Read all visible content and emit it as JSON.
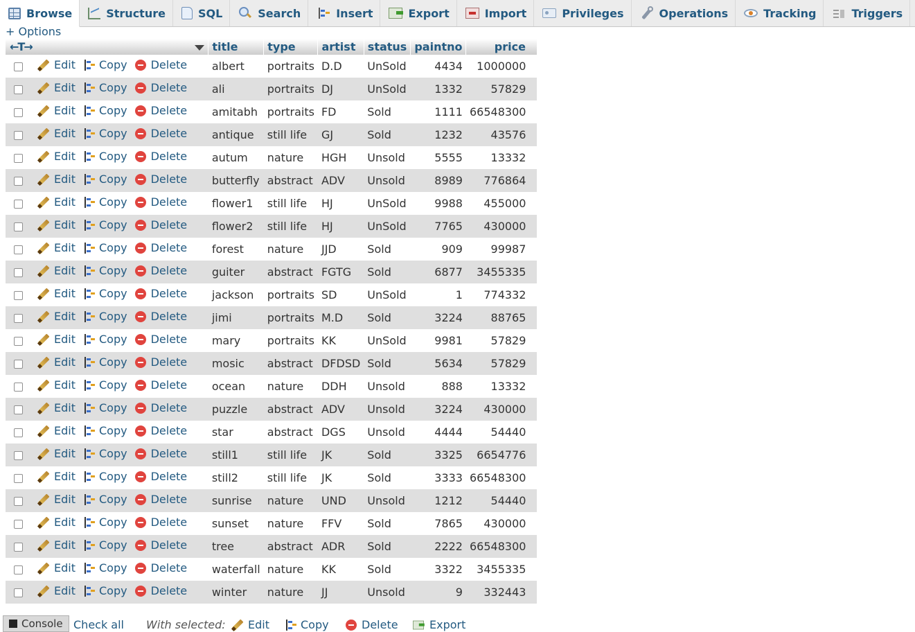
{
  "tabs": [
    {
      "label": "Browse",
      "icon": "browse-icon",
      "active": true
    },
    {
      "label": "Structure",
      "icon": "structure-icon"
    },
    {
      "label": "SQL",
      "icon": "sql-icon"
    },
    {
      "label": "Search",
      "icon": "search-icon"
    },
    {
      "label": "Insert",
      "icon": "insert-icon"
    },
    {
      "label": "Export",
      "icon": "export-icon"
    },
    {
      "label": "Import",
      "icon": "import-icon"
    },
    {
      "label": "Privileges",
      "icon": "privileges-icon"
    },
    {
      "label": "Operations",
      "icon": "operations-icon"
    },
    {
      "label": "Tracking",
      "icon": "tracking-icon"
    },
    {
      "label": "Triggers",
      "icon": "triggers-icon"
    }
  ],
  "options_label": "+ Options",
  "header": {
    "arrows": "←T→",
    "columns": [
      "title",
      "type",
      "artist",
      "status",
      "paintno",
      "price"
    ]
  },
  "actions": {
    "edit": "Edit",
    "copy": "Copy",
    "delete": "Delete"
  },
  "rows": [
    [
      "albert",
      "portraits",
      "D.D",
      "UnSold",
      "4434",
      "1000000"
    ],
    [
      "ali",
      "portraits",
      "DJ",
      "UnSold",
      "1332",
      "57829"
    ],
    [
      "amitabh",
      "portraits",
      "FD",
      "Sold",
      "1111",
      "66548300"
    ],
    [
      "antique",
      "still life",
      "GJ",
      "Sold",
      "1232",
      "43576"
    ],
    [
      "autum",
      "nature",
      "HGH",
      "Unsold",
      "5555",
      "13332"
    ],
    [
      "butterfly",
      "abstract",
      "ADV",
      "Unsold",
      "8989",
      "776864"
    ],
    [
      "flower1",
      "still life",
      "HJ",
      "UnSold",
      "9988",
      "455000"
    ],
    [
      "flower2",
      "still life",
      "HJ",
      "UnSold",
      "7765",
      "430000"
    ],
    [
      "forest",
      "nature",
      "JJD",
      "Sold",
      "909",
      "99987"
    ],
    [
      "guiter",
      "abstract",
      "FGTG",
      "Sold",
      "6877",
      "3455335"
    ],
    [
      "jackson",
      "portraits",
      "SD",
      "UnSold",
      "1",
      "774332"
    ],
    [
      "jimi",
      "portraits",
      "M.D",
      "Sold",
      "3224",
      "88765"
    ],
    [
      "mary",
      "portraits",
      "KK",
      "UnSold",
      "9981",
      "57829"
    ],
    [
      "mosic",
      "abstract",
      "DFDSD",
      "Sold",
      "5634",
      "57829"
    ],
    [
      "ocean",
      "nature",
      "DDH",
      "Unsold",
      "888",
      "13332"
    ],
    [
      "puzzle",
      "abstract",
      "ADV",
      "Unsold",
      "3224",
      "430000"
    ],
    [
      "star",
      "abstract",
      "DGS",
      "Unsold",
      "4444",
      "54440"
    ],
    [
      "still1",
      "still life",
      "JK",
      "Sold",
      "3325",
      "6654776"
    ],
    [
      "still2",
      "still life",
      "JK",
      "Sold",
      "3333",
      "66548300"
    ],
    [
      "sunrise",
      "nature",
      "UND",
      "Unsold",
      "1212",
      "54440"
    ],
    [
      "sunset",
      "nature",
      "FFV",
      "Sold",
      "7865",
      "430000"
    ],
    [
      "tree",
      "abstract",
      "ADR",
      "Sold",
      "2222",
      "66548300"
    ],
    [
      "waterfall",
      "nature",
      "KK",
      "Sold",
      "3322",
      "3455335"
    ],
    [
      "winter",
      "nature",
      "JJ",
      "Unsold",
      "9",
      "332443"
    ]
  ],
  "footer": {
    "console_label": "Console",
    "check_all": "Check all",
    "with_selected": "With selected:",
    "edit": "Edit",
    "copy": "Copy",
    "delete": "Delete",
    "export": "Export"
  },
  "colors": {
    "link": "#235a81",
    "row_alt": "#dfdfdf",
    "delete": "#e0443e"
  }
}
